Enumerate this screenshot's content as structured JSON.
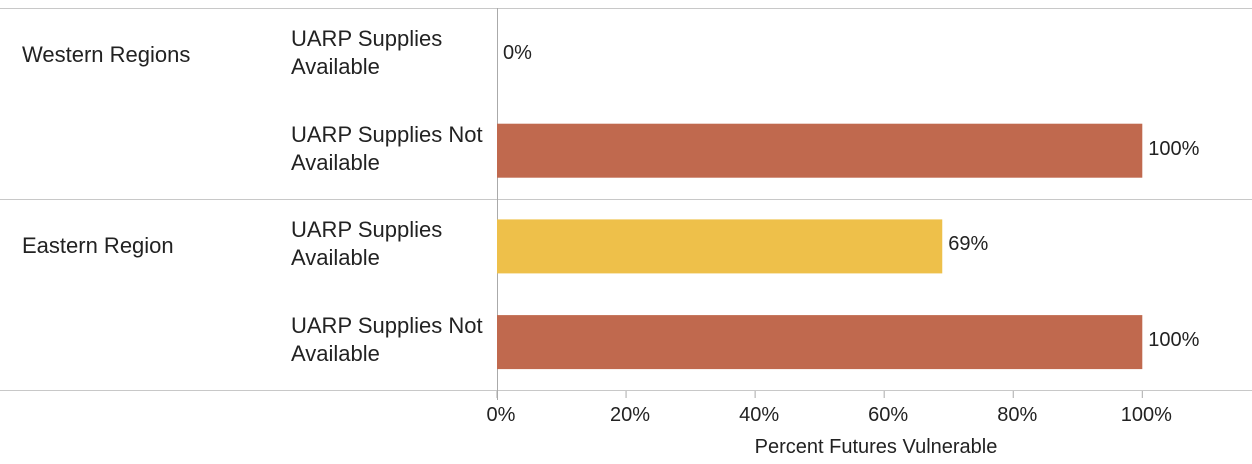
{
  "chart_data": {
    "type": "bar",
    "orientation": "horizontal",
    "groups": [
      {
        "name": "Western Regions",
        "categories": [
          "UARP Supplies Available",
          "UARP Supplies Not Available"
        ],
        "values": [
          0,
          100
        ],
        "value_labels": [
          "0%",
          "100%"
        ],
        "colors": [
          "#eec04a",
          "#c0694e"
        ]
      },
      {
        "name": "Eastern Region",
        "categories": [
          "UARP Supplies Available",
          "UARP Supplies Not Available"
        ],
        "values": [
          69,
          100
        ],
        "value_labels": [
          "69%",
          "100%"
        ],
        "colors": [
          "#eec04a",
          "#c0694e"
        ]
      }
    ],
    "xlabel": "Percent Futures Vulnerable",
    "xlim": [
      0,
      117
    ],
    "xticks": [
      {
        "value": 0,
        "label": "0%"
      },
      {
        "value": 20,
        "label": "20%"
      },
      {
        "value": 40,
        "label": "40%"
      },
      {
        "value": 60,
        "label": "60%"
      },
      {
        "value": 80,
        "label": "80%"
      },
      {
        "value": 100,
        "label": "100%"
      }
    ]
  }
}
